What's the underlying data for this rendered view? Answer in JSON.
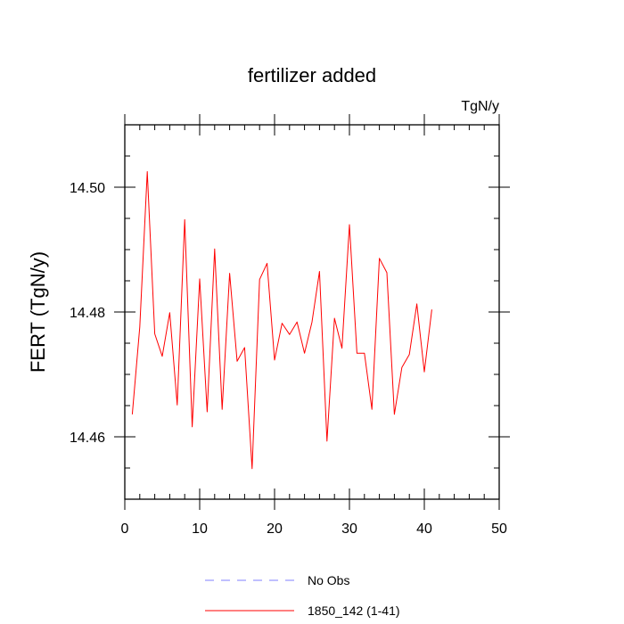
{
  "chart_data": {
    "type": "line",
    "title": "fertilizer added",
    "units_label": "TgN/y",
    "ylabel": "FERT  (TgN/y)",
    "xlabel": "",
    "xlim": [
      0,
      50
    ],
    "ylim": [
      14.45,
      14.51
    ],
    "xticks": [
      0,
      10,
      20,
      30,
      40,
      50
    ],
    "xtick_labels": [
      "0",
      "10",
      "20",
      "30",
      "40",
      "50"
    ],
    "yticks": [
      14.46,
      14.48,
      14.5
    ],
    "ytick_labels": [
      "14.46",
      "14.48",
      "14.50"
    ],
    "grid": false,
    "legend_position": "bottom",
    "legend": [
      {
        "label": "No Obs",
        "color": "#8080ff",
        "style": "dashed"
      },
      {
        "label": "1850_142 (1-41)",
        "color": "#ff0000",
        "style": "solid"
      }
    ],
    "series": [
      {
        "name": "1850_142 (1-41)",
        "color": "#ff0000",
        "x": [
          1,
          2,
          3,
          4,
          5,
          6,
          7,
          8,
          9,
          10,
          11,
          12,
          13,
          14,
          15,
          16,
          17,
          18,
          19,
          20,
          21,
          22,
          23,
          24,
          25,
          26,
          27,
          28,
          29,
          30,
          31,
          32,
          33,
          34,
          35,
          36,
          37,
          38,
          39,
          40,
          41
        ],
        "y": [
          14.4636,
          14.4776,
          14.5025,
          14.4765,
          14.4729,
          14.4799,
          14.4651,
          14.4948,
          14.4616,
          14.4853,
          14.464,
          14.4901,
          14.4644,
          14.4862,
          14.4721,
          14.4743,
          14.4549,
          14.4852,
          14.4878,
          14.4723,
          14.4782,
          14.4764,
          14.4784,
          14.4734,
          14.4784,
          14.4865,
          14.4593,
          14.479,
          14.4742,
          14.494,
          14.4734,
          14.4734,
          14.4644,
          14.4886,
          14.4863,
          14.4636,
          14.4711,
          14.4732,
          14.4813,
          14.4704,
          14.4804
        ]
      }
    ]
  }
}
